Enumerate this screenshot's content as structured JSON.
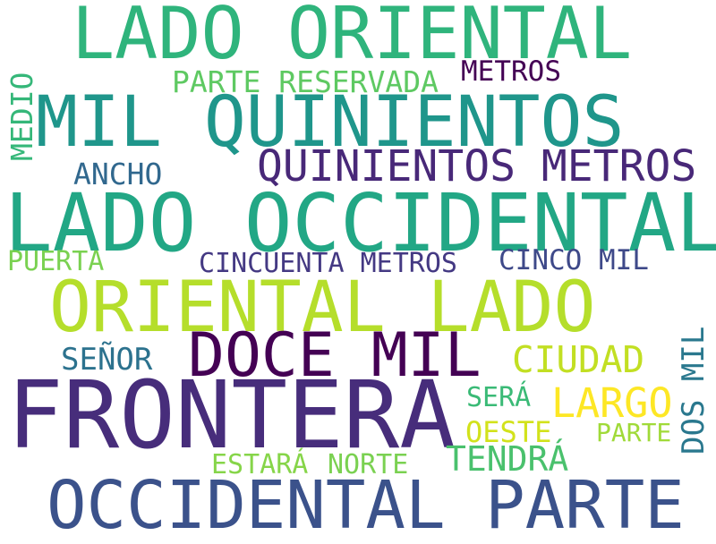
{
  "words": {
    "lado_oriental": {
      "text": "LADO ORIENTAL",
      "color": "#2fb47c"
    },
    "mil_quinientos": {
      "text": "MIL QUINIENTOS",
      "color": "#1f968b"
    },
    "lado_occidental": {
      "text": "LADO OCCIDENTAL",
      "color": "#22a785"
    },
    "quinientos_metros": {
      "text": "QUINIENTOS METROS",
      "color": "#482878"
    },
    "oriental_lado": {
      "text": "ORIENTAL LADO",
      "color": "#b5de2b"
    },
    "doce_mil": {
      "text": "DOCE MIL",
      "color": "#440154"
    },
    "frontera": {
      "text": "FRONTERA",
      "color": "#472d7b"
    },
    "occidental_parte": {
      "text": "OCCIDENTAL PARTE",
      "color": "#3b528b"
    },
    "parte_reservada": {
      "text": "PARTE RESERVADA",
      "color": "#5ec962"
    },
    "metros": {
      "text": "METROS",
      "color": "#440154"
    },
    "medio": {
      "text": "MEDIO",
      "color": "#35b779"
    },
    "ancho": {
      "text": "ANCHO",
      "color": "#31688e"
    },
    "puerta": {
      "text": "PUERTA",
      "color": "#7ad151"
    },
    "cincuenta_metros": {
      "text": "CINCUENTA METROS",
      "color": "#443983"
    },
    "cinco_mil": {
      "text": "CINCO MIL",
      "color": "#3e4989"
    },
    "senor": {
      "text": "SEÑOR",
      "color": "#2c728e"
    },
    "ciudad": {
      "text": "CIUDAD",
      "color": "#c2df23"
    },
    "dos_mil": {
      "text": "DOS MIL",
      "color": "#2a788e"
    },
    "sera": {
      "text": "SERÁ",
      "color": "#3aba76"
    },
    "largo": {
      "text": "LARGO",
      "color": "#fde725"
    },
    "oeste": {
      "text": "OESTE",
      "color": "#d2e21b"
    },
    "parte": {
      "text": "PARTE",
      "color": "#a0da39"
    },
    "tendra": {
      "text": "TENDRÁ",
      "color": "#4ac16d"
    },
    "estara": {
      "text": "ESTARÁ",
      "color": "#86d549"
    },
    "norte": {
      "text": "NORTE",
      "color": "#7ad151"
    }
  }
}
